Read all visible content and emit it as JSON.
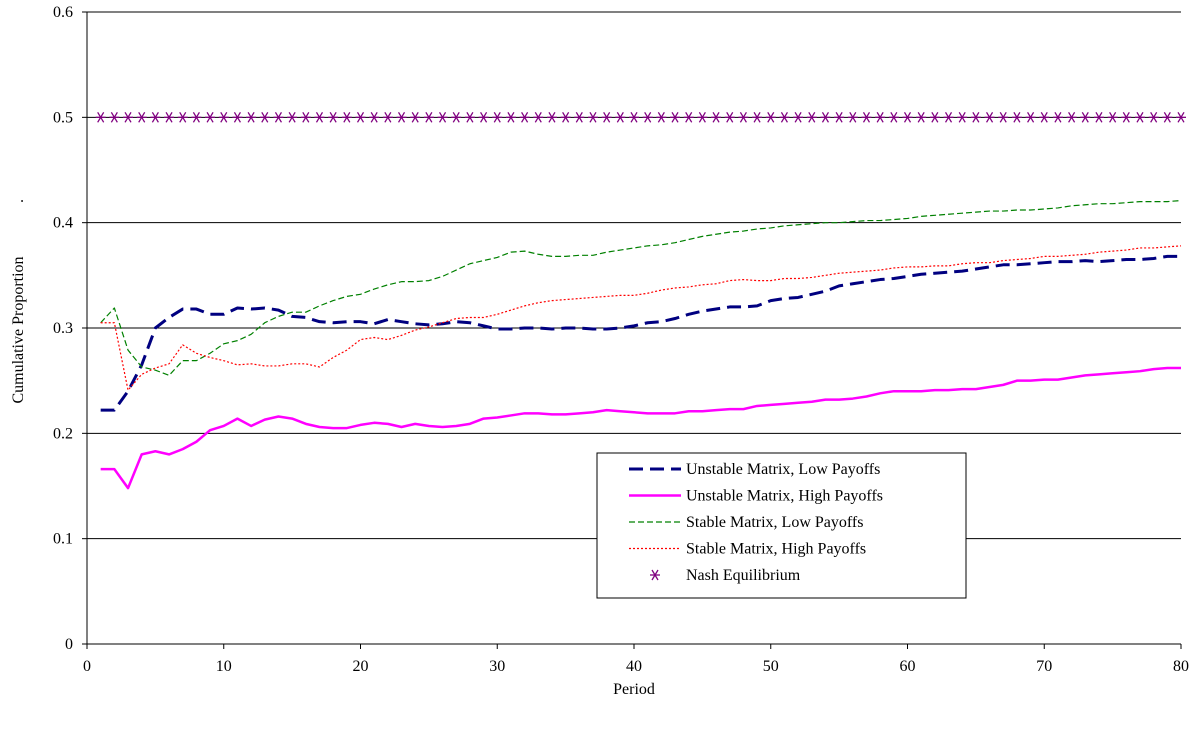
{
  "chart_data": {
    "type": "line",
    "xlabel": "Period",
    "ylabel": "Cumulative Proportion",
    "ylabel_suffix": ".",
    "xlim": [
      0,
      80
    ],
    "ylim": [
      0,
      0.6
    ],
    "x_ticks": [
      "0",
      "10",
      "20",
      "30",
      "40",
      "50",
      "60",
      "70",
      "80"
    ],
    "y_ticks": [
      "0",
      "0.1",
      "0.2",
      "0.3",
      "0.4",
      "0.5",
      "0.6"
    ],
    "grid": "horizontal",
    "legend_position": "bottom-right",
    "series": [
      {
        "name": "Unstable Matrix, Low Payoffs",
        "color": "#000080",
        "style": "long-dash",
        "values": [
          0.222,
          0.222,
          0.24,
          0.265,
          0.3,
          0.31,
          0.318,
          0.318,
          0.313,
          0.313,
          0.319,
          0.318,
          0.319,
          0.317,
          0.311,
          0.31,
          0.306,
          0.305,
          0.306,
          0.306,
          0.304,
          0.308,
          0.306,
          0.304,
          0.303,
          0.304,
          0.306,
          0.305,
          0.302,
          0.299,
          0.299,
          0.3,
          0.3,
          0.299,
          0.3,
          0.3,
          0.299,
          0.299,
          0.3,
          0.302,
          0.305,
          0.306,
          0.309,
          0.313,
          0.316,
          0.318,
          0.32,
          0.32,
          0.321,
          0.326,
          0.328,
          0.329,
          0.332,
          0.335,
          0.34,
          0.342,
          0.344,
          0.346,
          0.347,
          0.349,
          0.351,
          0.352,
          0.353,
          0.354,
          0.356,
          0.358,
          0.36,
          0.36,
          0.361,
          0.362,
          0.363,
          0.363,
          0.364,
          0.363,
          0.364,
          0.365,
          0.365,
          0.366,
          0.368,
          0.368
        ]
      },
      {
        "name": "Unstable Matrix, High Payoffs",
        "color": "#ff00ff",
        "style": "solid",
        "values": [
          0.166,
          0.166,
          0.148,
          0.18,
          0.183,
          0.18,
          0.185,
          0.192,
          0.203,
          0.207,
          0.214,
          0.207,
          0.213,
          0.216,
          0.214,
          0.209,
          0.206,
          0.205,
          0.205,
          0.208,
          0.21,
          0.209,
          0.206,
          0.209,
          0.207,
          0.206,
          0.207,
          0.209,
          0.214,
          0.215,
          0.217,
          0.219,
          0.219,
          0.218,
          0.218,
          0.219,
          0.22,
          0.222,
          0.221,
          0.22,
          0.219,
          0.219,
          0.219,
          0.221,
          0.221,
          0.222,
          0.223,
          0.223,
          0.226,
          0.227,
          0.228,
          0.229,
          0.23,
          0.232,
          0.232,
          0.233,
          0.235,
          0.238,
          0.24,
          0.24,
          0.24,
          0.241,
          0.241,
          0.242,
          0.242,
          0.244,
          0.246,
          0.25,
          0.25,
          0.251,
          0.251,
          0.253,
          0.255,
          0.256,
          0.257,
          0.258,
          0.259,
          0.261,
          0.262,
          0.262
        ]
      },
      {
        "name": "Stable Matrix, Low Payoffs",
        "color": "#008000",
        "style": "dash",
        "values": [
          0.305,
          0.319,
          0.279,
          0.263,
          0.26,
          0.255,
          0.269,
          0.269,
          0.276,
          0.285,
          0.288,
          0.294,
          0.305,
          0.311,
          0.315,
          0.315,
          0.321,
          0.326,
          0.33,
          0.332,
          0.337,
          0.341,
          0.344,
          0.344,
          0.345,
          0.349,
          0.355,
          0.361,
          0.364,
          0.367,
          0.372,
          0.373,
          0.37,
          0.368,
          0.368,
          0.369,
          0.369,
          0.372,
          0.374,
          0.376,
          0.378,
          0.379,
          0.381,
          0.384,
          0.387,
          0.389,
          0.391,
          0.392,
          0.394,
          0.395,
          0.397,
          0.398,
          0.399,
          0.4,
          0.4,
          0.401,
          0.402,
          0.402,
          0.403,
          0.404,
          0.406,
          0.407,
          0.408,
          0.409,
          0.41,
          0.411,
          0.411,
          0.412,
          0.412,
          0.413,
          0.414,
          0.416,
          0.417,
          0.418,
          0.418,
          0.419,
          0.42,
          0.42,
          0.42,
          0.421
        ]
      },
      {
        "name": "Stable Matrix, High Payoffs",
        "color": "#ff0000",
        "style": "dot",
        "values": [
          0.305,
          0.305,
          0.241,
          0.256,
          0.262,
          0.266,
          0.284,
          0.276,
          0.272,
          0.269,
          0.265,
          0.266,
          0.264,
          0.264,
          0.266,
          0.266,
          0.263,
          0.272,
          0.279,
          0.289,
          0.291,
          0.289,
          0.293,
          0.298,
          0.301,
          0.305,
          0.309,
          0.31,
          0.31,
          0.313,
          0.317,
          0.321,
          0.324,
          0.326,
          0.327,
          0.328,
          0.329,
          0.33,
          0.331,
          0.331,
          0.333,
          0.336,
          0.338,
          0.339,
          0.341,
          0.342,
          0.345,
          0.346,
          0.345,
          0.345,
          0.347,
          0.347,
          0.348,
          0.35,
          0.352,
          0.353,
          0.354,
          0.355,
          0.357,
          0.358,
          0.358,
          0.359,
          0.359,
          0.361,
          0.362,
          0.362,
          0.364,
          0.365,
          0.366,
          0.368,
          0.368,
          0.369,
          0.37,
          0.372,
          0.373,
          0.374,
          0.376,
          0.376,
          0.377,
          0.378
        ]
      },
      {
        "name": "Nash Equilibrium",
        "color": "#800080",
        "style": "asterisk",
        "values": [
          0.5,
          0.5,
          0.5,
          0.5,
          0.5,
          0.5,
          0.5,
          0.5,
          0.5,
          0.5,
          0.5,
          0.5,
          0.5,
          0.5,
          0.5,
          0.5,
          0.5,
          0.5,
          0.5,
          0.5,
          0.5,
          0.5,
          0.5,
          0.5,
          0.5,
          0.5,
          0.5,
          0.5,
          0.5,
          0.5,
          0.5,
          0.5,
          0.5,
          0.5,
          0.5,
          0.5,
          0.5,
          0.5,
          0.5,
          0.5,
          0.5,
          0.5,
          0.5,
          0.5,
          0.5,
          0.5,
          0.5,
          0.5,
          0.5,
          0.5,
          0.5,
          0.5,
          0.5,
          0.5,
          0.5,
          0.5,
          0.5,
          0.5,
          0.5,
          0.5,
          0.5,
          0.5,
          0.5,
          0.5,
          0.5,
          0.5,
          0.5,
          0.5,
          0.5,
          0.5,
          0.5,
          0.5,
          0.5,
          0.5,
          0.5,
          0.5,
          0.5,
          0.5,
          0.5,
          0.5
        ]
      }
    ]
  }
}
